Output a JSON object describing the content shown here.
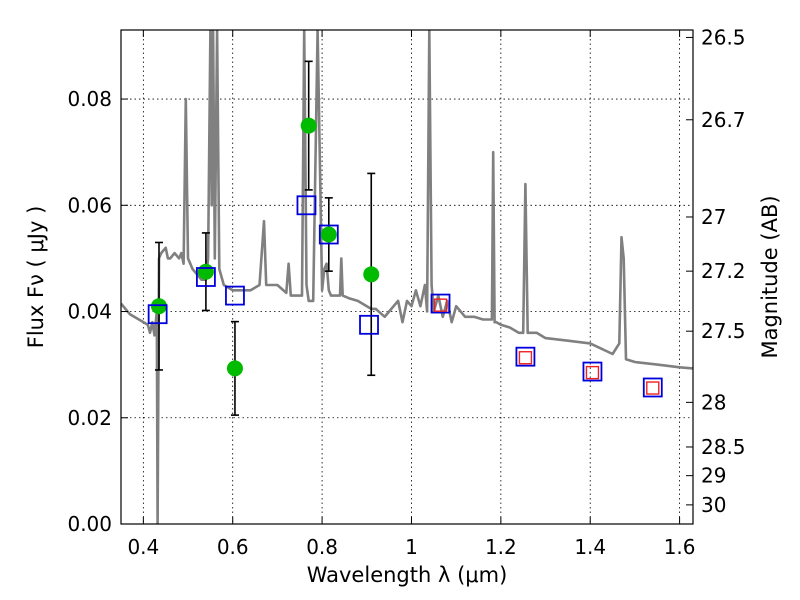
{
  "chart_data": {
    "type": "scatter",
    "xlabel": "Wavelength  λ (μm)",
    "ylabel": "Flux  Fν  ( μJy )",
    "ylabel_right": "Magnitude (AB)",
    "xlim": [
      0.35,
      1.63
    ],
    "ylim": [
      0.0,
      0.093
    ],
    "grid": true,
    "x_ticks": [
      0.4,
      0.6,
      0.8,
      1.0,
      1.2,
      1.4,
      1.6
    ],
    "x_tick_labels": [
      "0.4",
      "0.6",
      "0.8",
      "1",
      "1.2",
      "1.4",
      "1.6"
    ],
    "y_ticks": [
      0.0,
      0.02,
      0.04,
      0.06,
      0.08
    ],
    "y_tick_labels": [
      "0.00",
      "0.02",
      "0.04",
      "0.06",
      "0.08"
    ],
    "mag_ticks": [
      {
        "flux": 0.0916,
        "label": "26.5"
      },
      {
        "flux": 0.0761,
        "label": "26.7"
      },
      {
        "flux": 0.0578,
        "label": "27"
      },
      {
        "flux": 0.0476,
        "label": "27.2"
      },
      {
        "flux": 0.0363,
        "label": "27.5"
      },
      {
        "flux": 0.0229,
        "label": "28"
      },
      {
        "flux": 0.0145,
        "label": "28.5"
      },
      {
        "flux": 0.0091,
        "label": "29"
      },
      {
        "flux": 0.0036,
        "label": "30"
      }
    ],
    "series": [
      {
        "name": "model spectrum",
        "kind": "line",
        "color": "#808080",
        "x": [
          0.35,
          0.37,
          0.39,
          0.41,
          0.415,
          0.42,
          0.425,
          0.43,
          0.432,
          0.435,
          0.44,
          0.45,
          0.455,
          0.46,
          0.47,
          0.48,
          0.485,
          0.49,
          0.495,
          0.5,
          0.505,
          0.51,
          0.52,
          0.53,
          0.54,
          0.545,
          0.55,
          0.553,
          0.556,
          0.56,
          0.565,
          0.57,
          0.58,
          0.6,
          0.62,
          0.64,
          0.66,
          0.67,
          0.675,
          0.68,
          0.7,
          0.72,
          0.725,
          0.73,
          0.74,
          0.755,
          0.76,
          0.765,
          0.77,
          0.78,
          0.79,
          0.8,
          0.805,
          0.81,
          0.815,
          0.82,
          0.83,
          0.84,
          0.843,
          0.846,
          0.86,
          0.88,
          0.9,
          0.91,
          0.92,
          0.94,
          0.95,
          0.96,
          0.97,
          0.98,
          0.99,
          1.0,
          1.01,
          1.02,
          1.03,
          1.035,
          1.04,
          1.045,
          1.05,
          1.06,
          1.07,
          1.08,
          1.09,
          1.1,
          1.12,
          1.14,
          1.16,
          1.18,
          1.183,
          1.186,
          1.19,
          1.2,
          1.22,
          1.24,
          1.25,
          1.255,
          1.26,
          1.28,
          1.3,
          1.35,
          1.4,
          1.45,
          1.465,
          1.47,
          1.475,
          1.48,
          1.5,
          1.55,
          1.6,
          1.63
        ],
        "y": [
          0.0415,
          0.0395,
          0.0385,
          0.0375,
          0.036,
          0.038,
          0.0355,
          0.04,
          0.0,
          0.05,
          0.051,
          0.052,
          0.05,
          0.05,
          0.051,
          0.05,
          0.051,
          0.049,
          0.08,
          0.05,
          0.049,
          0.048,
          0.047,
          0.046,
          0.046,
          0.05,
          0.093,
          0.06,
          0.093,
          0.05,
          0.093,
          0.048,
          0.045,
          0.044,
          0.044,
          0.044,
          0.045,
          0.057,
          0.045,
          0.045,
          0.045,
          0.0435,
          0.049,
          0.043,
          0.043,
          0.043,
          0.093,
          0.045,
          0.042,
          0.042,
          0.093,
          0.044,
          0.048,
          0.049,
          0.044,
          0.043,
          0.043,
          0.043,
          0.05,
          0.043,
          0.0425,
          0.042,
          0.041,
          0.0405,
          0.0405,
          0.039,
          0.04,
          0.041,
          0.042,
          0.038,
          0.042,
          0.041,
          0.044,
          0.041,
          0.045,
          0.04,
          0.093,
          0.045,
          0.04,
          0.043,
          0.039,
          0.042,
          0.038,
          0.041,
          0.039,
          0.039,
          0.0385,
          0.0385,
          0.07,
          0.038,
          0.038,
          0.0375,
          0.037,
          0.036,
          0.036,
          0.064,
          0.036,
          0.036,
          0.035,
          0.0345,
          0.034,
          0.032,
          0.034,
          0.054,
          0.05,
          0.031,
          0.0305,
          0.03,
          0.0295,
          0.0293
        ]
      },
      {
        "name": "observed photometry",
        "kind": "points-with-errors",
        "color": "#00bb00",
        "x": [
          0.435,
          0.54,
          0.605,
          0.77,
          0.815,
          0.91
        ],
        "y": [
          0.041,
          0.0475,
          0.0293,
          0.075,
          0.0545,
          0.047
        ],
        "yerr": [
          0.012,
          0.0073,
          0.0088,
          0.0121,
          0.0069,
          0.019
        ]
      },
      {
        "name": "model photometry (blue squares)",
        "kind": "squares",
        "color": "#0000dd",
        "x": [
          0.432,
          0.54,
          0.605,
          0.765,
          0.815,
          0.905,
          1.065,
          1.255,
          1.405,
          1.54
        ],
        "y": [
          0.0395,
          0.0465,
          0.043,
          0.06,
          0.0545,
          0.0375,
          0.0415,
          0.0315,
          0.0287,
          0.0257
        ]
      },
      {
        "name": "model photometry (red squares)",
        "kind": "squares",
        "color": "#ee2222",
        "x": [
          1.065,
          1.255,
          1.405,
          1.54
        ],
        "y": [
          0.0412,
          0.0313,
          0.0285,
          0.0256
        ]
      }
    ]
  }
}
